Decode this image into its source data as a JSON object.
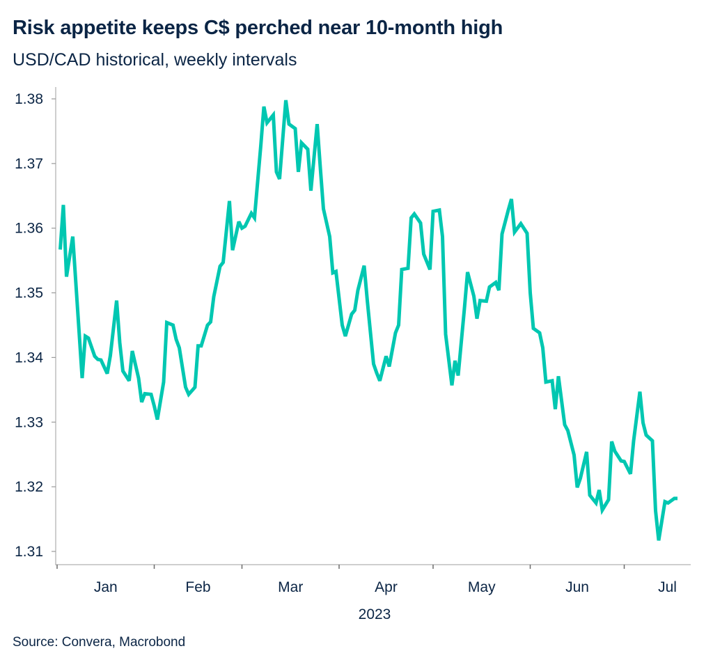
{
  "chart_data": {
    "type": "line",
    "title": "Risk appetite keeps C$ perched near 10-month high",
    "subtitle": "USD/CAD historical, weekly intervals",
    "source": "Source: Convera, Macrobond",
    "xlabel": "2023",
    "ylabel": "",
    "x_tick_labels": [
      "Jan",
      "Feb",
      "Mar",
      "Apr",
      "May",
      "Jun",
      "Jul"
    ],
    "y_tick_labels": [
      "1.31",
      "1.32",
      "1.33",
      "1.34",
      "1.35",
      "1.36",
      "1.37",
      "1.38"
    ],
    "ylim": [
      1.31,
      1.38
    ],
    "xlim": [
      "2023-01-01",
      "2023-07-20"
    ],
    "grid": false,
    "line_color": "#00c7b1",
    "text_color": "#0b2545",
    "series": [
      {
        "x": [
          "2023-01-02",
          "2023-01-03",
          "2023-01-04",
          "2023-01-06",
          "2023-01-09",
          "2023-01-10",
          "2023-01-11",
          "2023-01-13",
          "2023-01-14",
          "2023-01-15",
          "2023-01-17",
          "2023-01-18",
          "2023-01-20",
          "2023-01-21",
          "2023-01-22",
          "2023-01-24",
          "2023-01-25",
          "2023-01-27",
          "2023-01-28",
          "2023-01-29",
          "2023-01-31",
          "2023-02-01",
          "2023-02-02",
          "2023-02-04",
          "2023-02-05",
          "2023-02-07",
          "2023-02-08",
          "2023-02-09",
          "2023-02-11",
          "2023-02-12",
          "2023-02-14",
          "2023-02-15",
          "2023-02-16",
          "2023-02-18",
          "2023-02-19",
          "2023-02-20",
          "2023-02-22",
          "2023-02-23",
          "2023-02-25",
          "2023-02-26",
          "2023-02-28",
          "2023-03-01",
          "2023-03-02",
          "2023-03-04",
          "2023-03-05",
          "2023-03-07",
          "2023-03-08",
          "2023-03-09",
          "2023-03-11",
          "2023-03-12",
          "2023-03-13",
          "2023-03-15",
          "2023-03-16",
          "2023-03-18",
          "2023-03-19",
          "2023-03-20",
          "2023-03-22",
          "2023-03-23",
          "2023-03-25",
          "2023-03-26",
          "2023-03-27",
          "2023-03-29",
          "2023-03-30",
          "2023-03-31",
          "2023-04-02",
          "2023-04-03",
          "2023-04-05",
          "2023-04-06",
          "2023-04-07",
          "2023-04-09",
          "2023-04-10",
          "2023-04-12",
          "2023-04-13",
          "2023-04-14",
          "2023-04-16",
          "2023-04-17",
          "2023-04-19",
          "2023-04-20",
          "2023-04-21",
          "2023-04-23",
          "2023-04-24",
          "2023-04-25",
          "2023-04-27",
          "2023-04-28",
          "2023-04-30",
          "2023-05-01",
          "2023-05-03",
          "2023-05-04",
          "2023-05-05",
          "2023-05-07",
          "2023-05-08",
          "2023-05-09",
          "2023-05-11",
          "2023-05-12",
          "2023-05-14",
          "2023-05-15",
          "2023-05-16",
          "2023-05-18",
          "2023-05-19",
          "2023-05-21",
          "2023-05-22",
          "2023-05-23",
          "2023-05-25",
          "2023-05-26",
          "2023-05-27",
          "2023-05-29",
          "2023-05-31",
          "2023-06-01",
          "2023-06-02",
          "2023-06-04",
          "2023-06-05",
          "2023-06-06",
          "2023-06-08",
          "2023-06-09",
          "2023-06-10",
          "2023-06-12",
          "2023-06-13",
          "2023-06-15",
          "2023-06-16",
          "2023-06-17",
          "2023-06-19",
          "2023-06-20",
          "2023-06-22",
          "2023-06-23",
          "2023-06-24",
          "2023-06-26",
          "2023-06-27",
          "2023-06-28",
          "2023-06-30",
          "2023-07-01",
          "2023-07-03",
          "2023-07-04",
          "2023-07-06",
          "2023-07-07",
          "2023-07-08",
          "2023-07-10",
          "2023-07-11",
          "2023-07-12",
          "2023-07-14",
          "2023-07-15",
          "2023-07-17",
          "2023-07-18"
        ],
        "values": [
          1.3567,
          1.3636,
          1.3525,
          1.3587,
          1.3368,
          1.3433,
          1.343,
          1.3402,
          1.3397,
          1.3396,
          1.3375,
          1.3403,
          1.3488,
          1.3423,
          1.3379,
          1.3364,
          1.341,
          1.3368,
          1.3331,
          1.3344,
          1.3343,
          1.3325,
          1.3304,
          1.3362,
          1.3454,
          1.345,
          1.3428,
          1.3415,
          1.3354,
          1.3343,
          1.3354,
          1.3418,
          1.3418,
          1.345,
          1.3455,
          1.3494,
          1.3541,
          1.3547,
          1.3642,
          1.3566,
          1.361,
          1.36,
          1.3603,
          1.3623,
          1.3616,
          1.3727,
          1.3788,
          1.3763,
          1.3775,
          1.3687,
          1.3676,
          1.3798,
          1.3761,
          1.3754,
          1.3687,
          1.3732,
          1.3722,
          1.3658,
          1.3761,
          1.3694,
          1.363,
          1.3587,
          1.3531,
          1.3533,
          1.345,
          1.3433,
          1.3467,
          1.3473,
          1.3504,
          1.3542,
          1.3488,
          1.339,
          1.3376,
          1.3364,
          1.3402,
          1.3386,
          1.3438,
          1.345,
          1.3536,
          1.3538,
          1.3616,
          1.3622,
          1.3608,
          1.356,
          1.3536,
          1.3626,
          1.3628,
          1.3587,
          1.3436,
          1.3357,
          1.3395,
          1.3372,
          1.3476,
          1.3532,
          1.3495,
          1.346,
          1.3488,
          1.3487,
          1.3509,
          1.3516,
          1.3504,
          1.3591,
          1.3628,
          1.3645,
          1.3594,
          1.3607,
          1.3592,
          1.35,
          1.3445,
          1.3438,
          1.3415,
          1.3362,
          1.3364,
          1.332,
          1.3371,
          1.3296,
          1.3287,
          1.3249,
          1.3199,
          1.3213,
          1.3254,
          1.3187,
          1.3175,
          1.3195,
          1.3164,
          1.318,
          1.327,
          1.3255,
          1.324,
          1.3239,
          1.322,
          1.3271,
          1.3347,
          1.3299,
          1.328,
          1.3271,
          1.3163,
          1.3117,
          1.3177,
          1.3175,
          1.3182,
          1.3182
        ]
      }
    ]
  }
}
